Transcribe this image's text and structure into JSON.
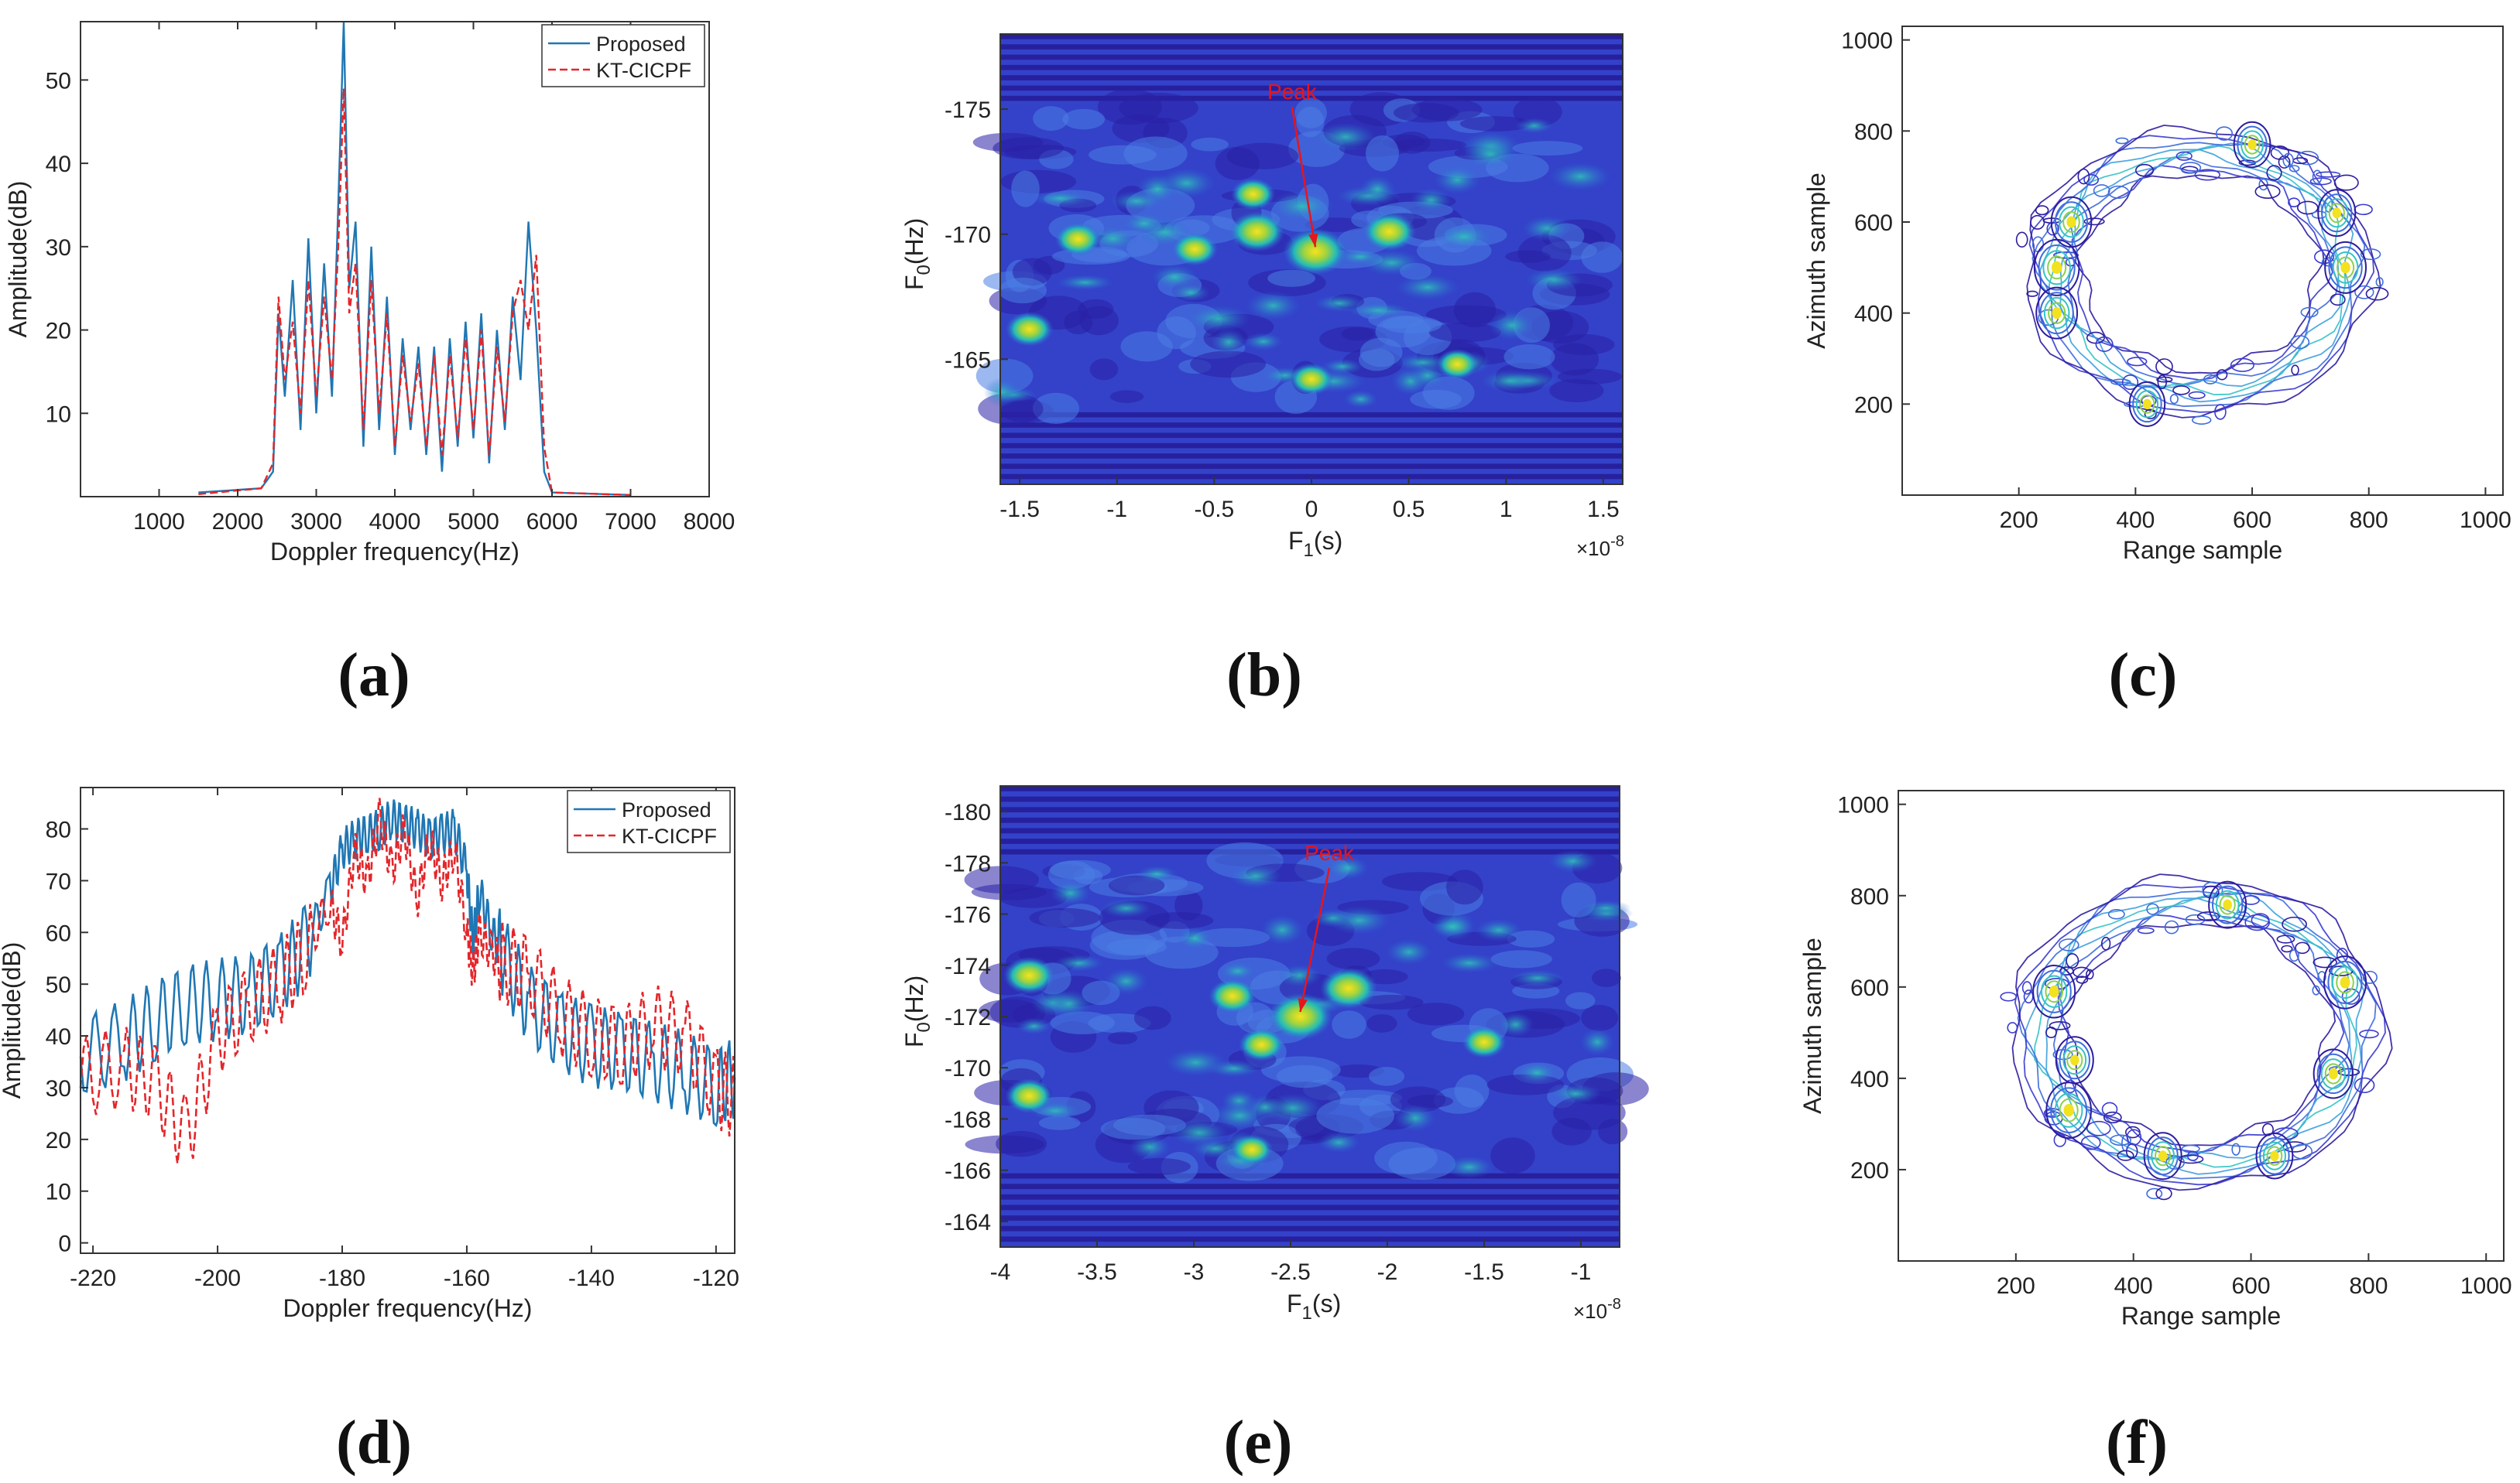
{
  "colors": {
    "proposed": "#1f77b4",
    "kt": "#e4262a",
    "axis": "#222222",
    "peak": "#e8151b",
    "map_low": "#2a1ba0",
    "map_mid": "#27c3bd",
    "map_high": "#f7e21a"
  },
  "panels": [
    {
      "id": "a",
      "label": "(a)"
    },
    {
      "id": "b",
      "label": "(b)"
    },
    {
      "id": "c",
      "label": "(c)"
    },
    {
      "id": "d",
      "label": "(d)"
    },
    {
      "id": "e",
      "label": "(e)"
    },
    {
      "id": "f",
      "label": "(f)"
    }
  ],
  "chart_data": [
    {
      "id": "a",
      "type": "line",
      "xlabel": "Doppler frequency(Hz)",
      "ylabel": "Amplitude(dB)",
      "xlim": [
        0,
        8000
      ],
      "ylim": [
        0,
        57
      ],
      "xticks": [
        1000,
        2000,
        3000,
        4000,
        5000,
        6000,
        7000,
        8000
      ],
      "yticks": [
        10,
        20,
        30,
        40,
        50
      ],
      "legend": [
        "Proposed",
        "KT-CICPF"
      ],
      "legend_position": "top-right",
      "series": [
        {
          "name": "Proposed",
          "style": "solid",
          "x": [
            1500,
            2300,
            2450,
            2520,
            2600,
            2700,
            2800,
            2900,
            3000,
            3100,
            3200,
            3280,
            3350,
            3420,
            3500,
            3600,
            3700,
            3800,
            3900,
            4000,
            4100,
            4200,
            4300,
            4400,
            4500,
            4600,
            4700,
            4800,
            4900,
            5000,
            5100,
            5200,
            5300,
            5400,
            5500,
            5600,
            5700,
            5800,
            5900,
            6000,
            7000
          ],
          "y": [
            0.5,
            1,
            3,
            22,
            12,
            26,
            8,
            31,
            10,
            28,
            12,
            35,
            57,
            25,
            33,
            6,
            30,
            8,
            24,
            5,
            19,
            8,
            18,
            5,
            18,
            3,
            19,
            6,
            21,
            7,
            22,
            4,
            20,
            8,
            24,
            14,
            33,
            20,
            3,
            0.5,
            0.2
          ]
        },
        {
          "name": "KT-CICPF",
          "style": "dashed",
          "x": [
            1500,
            2300,
            2450,
            2520,
            2600,
            2700,
            2800,
            2900,
            3000,
            3100,
            3200,
            3280,
            3350,
            3420,
            3500,
            3600,
            3700,
            3800,
            3900,
            4000,
            4100,
            4200,
            4300,
            4400,
            4500,
            4600,
            4700,
            4800,
            4900,
            5000,
            5100,
            5200,
            5300,
            5400,
            5500,
            5600,
            5700,
            5800,
            5900,
            6000,
            7000
          ],
          "y": [
            0.3,
            1,
            4,
            24,
            14,
            21,
            10,
            26,
            12,
            24,
            14,
            30,
            49,
            22,
            28,
            8,
            26,
            10,
            22,
            6,
            17,
            9,
            16,
            6,
            17,
            5,
            17,
            7,
            19,
            8,
            20,
            5,
            18,
            9,
            22,
            26,
            20,
            29,
            6,
            0.5,
            0.2
          ]
        }
      ]
    },
    {
      "id": "b",
      "type": "heatmap",
      "xlabel_main": "F",
      "xlabel_sub": "1",
      "xlabel_unit": "(s)",
      "ylabel_main": "F",
      "ylabel_sub": "0",
      "ylabel_unit": "(Hz)",
      "xlim": [
        -1.6,
        1.6
      ],
      "ylim": [
        -160,
        -178
      ],
      "xticks": [
        -1.5,
        -1,
        -0.5,
        0,
        0.5,
        1,
        1.5
      ],
      "xtick_labels": [
        "-1.5",
        "-1",
        "-0.5",
        "0",
        "0.5",
        "1",
        "1.5"
      ],
      "yticks": [
        -175,
        -170,
        -165
      ],
      "ytick_labels": [
        "-175",
        "-170",
        "-165"
      ],
      "x_scale_base": "×10",
      "x_scale_exp": "-8",
      "annotation": "Peak",
      "annotation_from": [
        -0.1,
        -175.4
      ],
      "peak": [
        0.02,
        -169.3
      ],
      "hot_spots": [
        [
          0.02,
          -169.3,
          1.0
        ],
        [
          -0.28,
          -170.1,
          0.75
        ],
        [
          0.4,
          -170.1,
          0.7
        ],
        [
          -1.2,
          -169.8,
          0.5
        ],
        [
          -0.6,
          -169.4,
          0.5
        ],
        [
          -1.45,
          -166.2,
          0.55
        ],
        [
          0.0,
          -164.2,
          0.45
        ],
        [
          0.75,
          -164.8,
          0.4
        ],
        [
          -0.3,
          -171.6,
          0.45
        ]
      ]
    },
    {
      "id": "c",
      "type": "contour",
      "xlabel": "Range sample",
      "ylabel": "Azimuth sample",
      "xlim": [
        0,
        1030
      ],
      "ylim": [
        0,
        1030
      ],
      "xticks": [
        200,
        400,
        600,
        800,
        1000
      ],
      "yticks": [
        200,
        400,
        600,
        800,
        1000
      ],
      "ring_center": [
        510,
        490
      ],
      "ring_radius_x": 250,
      "ring_radius_y": 265,
      "hot_spots": [
        [
          265,
          500,
          1.0
        ],
        [
          265,
          400,
          0.8
        ],
        [
          290,
          600,
          0.75
        ],
        [
          760,
          500,
          0.8
        ],
        [
          745,
          620,
          0.6
        ],
        [
          600,
          770,
          0.55
        ],
        [
          420,
          200,
          0.5
        ]
      ]
    },
    {
      "id": "d",
      "type": "line",
      "xlabel": "Doppler frequency(Hz)",
      "ylabel": "Amplitude(dB)",
      "xlim": [
        -222,
        -117
      ],
      "ylim": [
        -2,
        88
      ],
      "xticks": [
        -220,
        -200,
        -180,
        -160,
        -140,
        -120
      ],
      "yticks": [
        0,
        10,
        20,
        30,
        40,
        50,
        60,
        70,
        80
      ],
      "legend": [
        "Proposed",
        "KT-CICPF"
      ],
      "legend_position": "top-right",
      "series": [
        {
          "name": "Proposed",
          "style": "solid",
          "x": [
            -222,
            -215,
            -210,
            -205,
            -200,
            -195,
            -190,
            -186,
            -182,
            -180,
            -178,
            -176,
            -174,
            -172,
            -170,
            -168,
            -166,
            -164,
            -162,
            -160,
            -159,
            -158,
            -156,
            -154,
            -150,
            -145,
            -140,
            -135,
            -130,
            -125,
            -120,
            -117
          ],
          "y": [
            36,
            39,
            43,
            46,
            47,
            48,
            52,
            57,
            68,
            76,
            78,
            79,
            80,
            82,
            81,
            80,
            78,
            79,
            80,
            72,
            58,
            68,
            60,
            55,
            46,
            41,
            38,
            37,
            35,
            33,
            30,
            32
          ]
        },
        {
          "name": "KT-CICPF",
          "style": "dashed",
          "x": [
            -222,
            -215,
            -210,
            -205,
            -200,
            -195,
            -190,
            -186,
            -182,
            -180,
            -178,
            -176,
            -174,
            -172,
            -170,
            -168,
            -166,
            -164,
            -162,
            -160,
            -159,
            -158,
            -156,
            -154,
            -150,
            -145,
            -140,
            -135,
            -130,
            -125,
            -120,
            -117
          ],
          "y": [
            32,
            34,
            31,
            20,
            40,
            46,
            50,
            56,
            66,
            58,
            76,
            70,
            82,
            72,
            80,
            66,
            78,
            70,
            76,
            60,
            52,
            60,
            56,
            54,
            52,
            44,
            40,
            38,
            42,
            40,
            30,
            28
          ]
        }
      ]
    },
    {
      "id": "e",
      "type": "heatmap",
      "xlabel_main": "F",
      "xlabel_sub": "1",
      "xlabel_unit": "(s)",
      "ylabel_main": "F",
      "ylabel_sub": "0",
      "ylabel_unit": "(Hz)",
      "xlim": [
        -4,
        -0.8
      ],
      "ylim": [
        -163,
        -181
      ],
      "xticks": [
        -4,
        -3.5,
        -3,
        -2.5,
        -2,
        -1.5,
        -1
      ],
      "xtick_labels": [
        "-4",
        "-3.5",
        "-3",
        "-2.5",
        "-2",
        "-1.5",
        "-1"
      ],
      "yticks": [
        -180,
        -178,
        -176,
        -174,
        -172,
        -170,
        -168,
        -166,
        -164
      ],
      "ytick_labels": [
        "-180",
        "-178",
        "-176",
        "-174",
        "-172",
        "-170",
        "-168",
        "-166",
        "-164"
      ],
      "x_scale_base": "×10",
      "x_scale_exp": "-8",
      "annotation": "Peak",
      "annotation_from": [
        -2.3,
        -178.1
      ],
      "peak": [
        -2.45,
        -172.0
      ],
      "hot_spots": [
        [
          -2.45,
          -172.0,
          1.0
        ],
        [
          -2.2,
          -173.1,
          0.8
        ],
        [
          -3.85,
          -173.6,
          0.65
        ],
        [
          -3.85,
          -168.9,
          0.55
        ],
        [
          -2.8,
          -172.8,
          0.55
        ],
        [
          -2.65,
          -170.9,
          0.5
        ],
        [
          -1.5,
          -171.0,
          0.45
        ],
        [
          -2.7,
          -166.8,
          0.4
        ]
      ]
    },
    {
      "id": "f",
      "type": "contour",
      "xlabel": "Range sample",
      "ylabel": "Azimuth sample",
      "xlim": [
        0,
        1030
      ],
      "ylim": [
        0,
        1030
      ],
      "xticks": [
        200,
        400,
        600,
        800,
        1000
      ],
      "yticks": [
        200,
        400,
        600,
        800,
        1000
      ],
      "ring_center": [
        510,
        500
      ],
      "ring_radius_x": 270,
      "ring_radius_y": 290,
      "hot_spots": [
        [
          290,
          330,
          1.0
        ],
        [
          265,
          590,
          0.85
        ],
        [
          760,
          610,
          0.85
        ],
        [
          740,
          410,
          0.7
        ],
        [
          450,
          230,
          0.6
        ],
        [
          560,
          780,
          0.6
        ],
        [
          640,
          230,
          0.55
        ],
        [
          300,
          440,
          0.6
        ]
      ]
    }
  ]
}
